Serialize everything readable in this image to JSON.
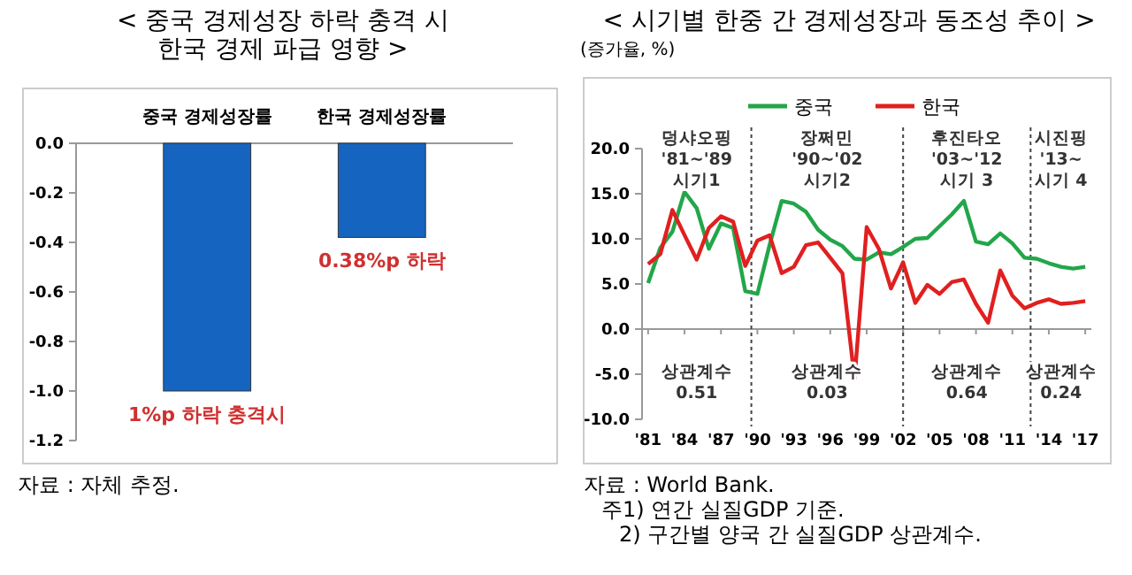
{
  "chart_data": [
    {
      "type": "bar",
      "title": "< 중국 경제성장 하락 충격 시\n한국 경제 파급 영향 >",
      "categories": [
        "중국 경제성장률",
        "한국 경제성장률"
      ],
      "values": [
        -1.0,
        -0.38
      ],
      "color": "#1565c0",
      "ylim": [
        -1.2,
        0
      ],
      "yticks": [
        {
          "value": -1.2,
          "label": "-1.2"
        },
        {
          "value": -1.0,
          "label": "-1.0"
        },
        {
          "value": -0.8,
          "label": "-0.8"
        },
        {
          "value": -0.6,
          "label": "-0.6"
        },
        {
          "value": -0.4,
          "label": "-0.4"
        },
        {
          "value": -0.2,
          "label": "-0.2"
        },
        {
          "value": 0,
          "label": "0.0"
        }
      ],
      "annotations": [
        {
          "text": "1%p 하락 충격시",
          "x": "중국 경제성장률",
          "y": -1.0
        },
        {
          "text": "0.38%p 하락",
          "x": "한국 경제성장률",
          "y": -0.38
        },
        "자료 : 자체 추정."
      ]
    },
    {
      "type": "line",
      "title": "< 시기별 한중 간 경제성장과 동조성 추이 >",
      "subtitle": "(증가율, %)",
      "legend": "top",
      "x": [
        1981,
        1982,
        1983,
        1984,
        1985,
        1986,
        1987,
        1988,
        1989,
        1990,
        1991,
        1992,
        1993,
        1994,
        1995,
        1996,
        1997,
        1998,
        1999,
        2000,
        2001,
        2002,
        2003,
        2004,
        2005,
        2006,
        2007,
        2008,
        2009,
        2010,
        2011,
        2012,
        2013,
        2014,
        2015,
        2016,
        2017
      ],
      "series": [
        {
          "name": "중국",
          "color": "#22a64a",
          "values": [
            5.1,
            9.0,
            10.8,
            15.2,
            13.4,
            8.9,
            11.7,
            11.2,
            4.2,
            3.9,
            9.3,
            14.2,
            13.9,
            13.0,
            11.0,
            9.9,
            9.2,
            7.8,
            7.7,
            8.5,
            8.3,
            9.1,
            10.0,
            10.1,
            11.4,
            12.7,
            14.2,
            9.7,
            9.4,
            10.6,
            9.5,
            7.9,
            7.8,
            7.3,
            6.9,
            6.7,
            6.9
          ]
        },
        {
          "name": "한국",
          "color": "#e02020",
          "values": [
            7.2,
            8.3,
            13.2,
            10.4,
            7.7,
            11.2,
            12.5,
            11.9,
            7.0,
            9.8,
            10.4,
            6.2,
            6.9,
            9.3,
            9.6,
            7.9,
            6.2,
            -5.5,
            11.3,
            8.9,
            4.5,
            7.4,
            2.9,
            4.9,
            3.9,
            5.2,
            5.5,
            2.8,
            0.7,
            6.5,
            3.7,
            2.3,
            2.9,
            3.3,
            2.8,
            2.9,
            3.1
          ]
        }
      ],
      "xlim": [
        1980.5,
        2017.5
      ],
      "xticks": [
        {
          "value": 1981,
          "label": "'81"
        },
        {
          "value": 1984,
          "label": "'84"
        },
        {
          "value": 1987,
          "label": "'87"
        },
        {
          "value": 1990,
          "label": "'90"
        },
        {
          "value": 1993,
          "label": "'93"
        },
        {
          "value": 1996,
          "label": "'96"
        },
        {
          "value": 1999,
          "label": "'99"
        },
        {
          "value": 2002,
          "label": "'02"
        },
        {
          "value": 2005,
          "label": "'05"
        },
        {
          "value": 2008,
          "label": "'08"
        },
        {
          "value": 2011,
          "label": "'11"
        },
        {
          "value": 2014,
          "label": "'14"
        },
        {
          "value": 2017,
          "label": "'17"
        }
      ],
      "ylim": [
        -10,
        20
      ],
      "yticks": [
        {
          "value": -10,
          "label": "-10.0"
        },
        {
          "value": -5,
          "label": "-5.0"
        },
        {
          "value": 0,
          "label": "0.0"
        },
        {
          "value": 5,
          "label": "5.0"
        },
        {
          "value": 10,
          "label": "10.0"
        },
        {
          "value": 15,
          "label": "15.0"
        },
        {
          "value": 20,
          "label": "20.0"
        }
      ],
      "ref_lines": [
        {
          "axis": "x",
          "value": 1989.5,
          "color": "#444444",
          "line_style": "dotted"
        },
        {
          "axis": "x",
          "value": 2002,
          "color": "#444444",
          "line_style": "dotted"
        },
        {
          "axis": "x",
          "value": 2012.5,
          "color": "#444444",
          "line_style": "dotted"
        }
      ],
      "annotations": [
        "덩샤오핑\n'81~'89\n시기1",
        "장쩌민\n'90~'02\n시기2",
        "후진타오\n'03~'12\n시기 3",
        "시진핑\n'13~\n시기 4",
        "상관계수\n0.51",
        "상관계수\n0.03",
        "상관계수\n0.64",
        "상관계수\n0.24",
        "자료 : World Bank.",
        "주1) 연간 실질GDP 기준.",
        "2) 구간별 양국 간 실질GDP 상관계수."
      ]
    }
  ]
}
